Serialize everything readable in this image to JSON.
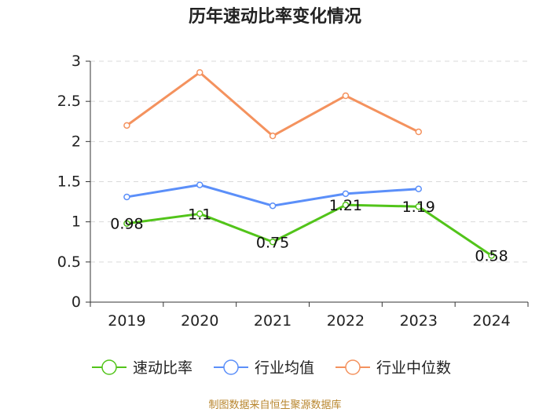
{
  "chart_data": {
    "type": "line",
    "title": "历年速动比率变化情况",
    "categories": [
      "2019",
      "2020",
      "2021",
      "2022",
      "2023",
      "2024"
    ],
    "ylim": [
      0,
      3
    ],
    "yticks": [
      "0",
      "0.5",
      "1",
      "1.5",
      "2",
      "2.5",
      "3"
    ],
    "ytick_values": [
      0,
      0.5,
      1,
      1.5,
      2,
      2.5,
      3
    ],
    "grid": true,
    "legend_position": "bottom",
    "series": [
      {
        "name": "速动比率",
        "color": "#52c41a",
        "values": [
          0.98,
          1.1,
          0.75,
          1.21,
          1.19,
          0.58
        ],
        "labels": [
          "0.98",
          "1.1",
          "0.75",
          "1.21",
          "1.19",
          "0.58"
        ]
      },
      {
        "name": "行业均值",
        "color": "#5b8ff9",
        "values": [
          1.31,
          1.46,
          1.2,
          1.35,
          1.41,
          null
        ]
      },
      {
        "name": "行业中位数",
        "color": "#f4925e",
        "values": [
          2.2,
          2.86,
          2.07,
          2.57,
          2.12,
          null
        ]
      }
    ],
    "source": "制图数据来自恒生聚源数据库"
  }
}
